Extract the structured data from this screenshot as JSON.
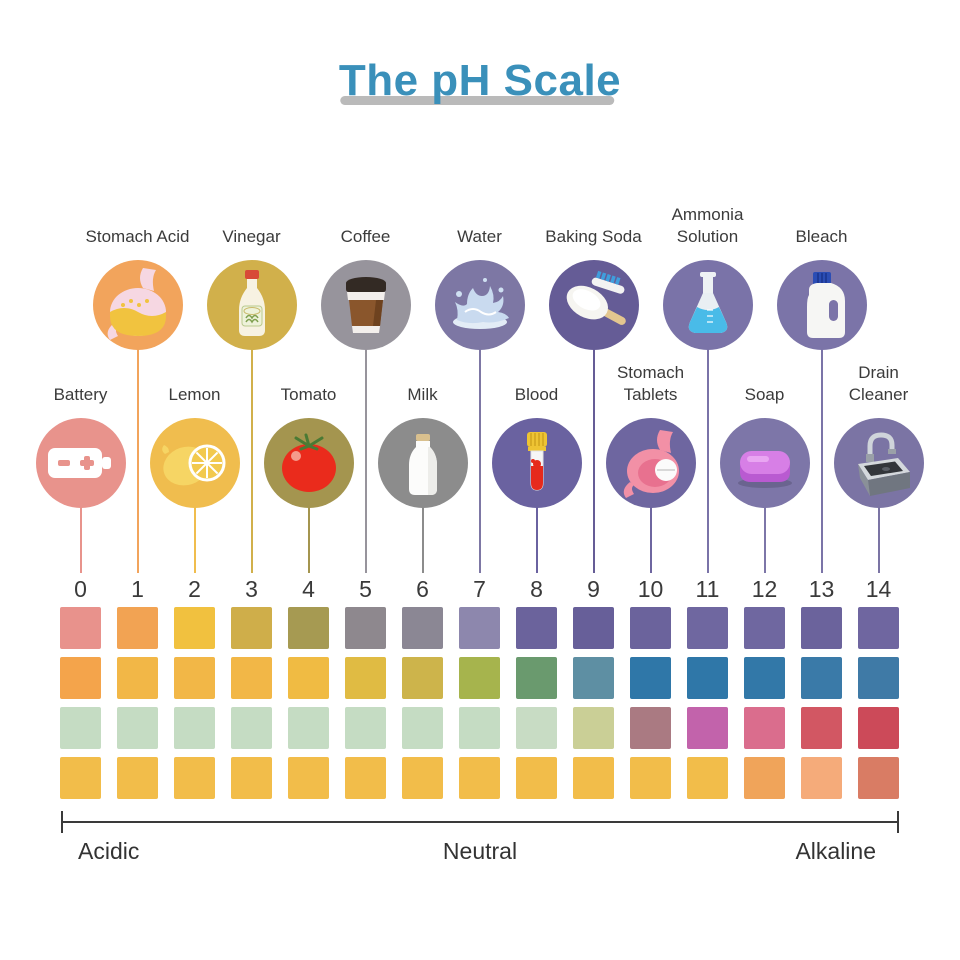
{
  "title": "The pH Scale",
  "colors": {
    "title": "#3a90ba",
    "title_underline": "#bababa",
    "label_text": "#3b3b3b",
    "bracket": "#3a3a3a"
  },
  "items": [
    {
      "ph": 0,
      "label": "Battery",
      "label_lines": [
        "Battery"
      ],
      "row": "bottom",
      "circle_color": "#e8938c",
      "icon": "battery"
    },
    {
      "ph": 1,
      "label": "Stomach Acid",
      "label_lines": [
        "Stomach Acid"
      ],
      "row": "top",
      "circle_color": "#f2a45c",
      "icon": "stomach-acid"
    },
    {
      "ph": 2,
      "label": "Lemon",
      "label_lines": [
        "Lemon"
      ],
      "row": "bottom",
      "circle_color": "#f0bd4e",
      "icon": "lemon"
    },
    {
      "ph": 3,
      "label": "Vinegar",
      "label_lines": [
        "Vinegar"
      ],
      "row": "top",
      "circle_color": "#d1b04b",
      "icon": "vinegar"
    },
    {
      "ph": 4,
      "label": "Tomato",
      "label_lines": [
        "Tomato"
      ],
      "row": "bottom",
      "circle_color": "#a4954f",
      "icon": "tomato"
    },
    {
      "ph": 5,
      "label": "Coffee",
      "label_lines": [
        "Coffee"
      ],
      "row": "top",
      "circle_color": "#97949c",
      "icon": "coffee"
    },
    {
      "ph": 6,
      "label": "Milk",
      "label_lines": [
        "Milk"
      ],
      "row": "bottom",
      "circle_color": "#8c8c8c",
      "icon": "milk"
    },
    {
      "ph": 7,
      "label": "Water",
      "label_lines": [
        "Water"
      ],
      "row": "top",
      "circle_color": "#7d77a4",
      "icon": "water"
    },
    {
      "ph": 8,
      "label": "Blood",
      "label_lines": [
        "Blood"
      ],
      "row": "bottom",
      "circle_color": "#6a62a0",
      "icon": "blood"
    },
    {
      "ph": 9,
      "label": "Baking Soda",
      "label_lines": [
        "Baking Soda"
      ],
      "row": "top",
      "circle_color": "#655c96",
      "icon": "baking-soda"
    },
    {
      "ph": 10,
      "label": "Stomach Tablets",
      "label_lines": [
        "Stomach",
        "Tablets"
      ],
      "row": "bottom",
      "circle_color": "#6e66a0",
      "icon": "stomach-tablets"
    },
    {
      "ph": 11,
      "label": "Ammonia Solution",
      "label_lines": [
        "Ammonia",
        "Solution"
      ],
      "row": "top",
      "circle_color": "#7a73a8",
      "icon": "ammonia-flask"
    },
    {
      "ph": 12,
      "label": "Soap",
      "label_lines": [
        "Soap"
      ],
      "row": "bottom",
      "circle_color": "#7d76a8",
      "icon": "soap"
    },
    {
      "ph": 13,
      "label": "Bleach",
      "label_lines": [
        "Bleach"
      ],
      "row": "top",
      "circle_color": "#7b74a8",
      "icon": "bleach"
    },
    {
      "ph": 14,
      "label": "Drain Cleaner",
      "label_lines": [
        "Drain",
        "Cleaner"
      ],
      "row": "bottom",
      "circle_color": "#7b74a4",
      "icon": "drain-cleaner"
    }
  ],
  "scale_numbers": [
    "0",
    "1",
    "2",
    "3",
    "4",
    "5",
    "6",
    "7",
    "8",
    "9",
    "10",
    "11",
    "12",
    "13",
    "14"
  ],
  "swatch_rows": [
    {
      "name": "strip-row-1",
      "colors": [
        "#e8928c",
        "#f2a353",
        "#f1c13f",
        "#cfae4a",
        "#a69a52",
        "#8e888e",
        "#8b8794",
        "#8d87ad",
        "#6b639c",
        "#675f99",
        "#6b639c",
        "#6f67a0",
        "#6f67a0",
        "#6b639c",
        "#6f66a0"
      ]
    },
    {
      "name": "strip-row-2",
      "colors": [
        "#f4a44b",
        "#f2b747",
        "#f2b747",
        "#f2b747",
        "#f0bb43",
        "#e0bb43",
        "#cdb44b",
        "#a6b44d",
        "#6a9a6e",
        "#5e8fa3",
        "#2f77a8",
        "#2f77a8",
        "#3278a8",
        "#3a7aa8",
        "#3f7aa6"
      ]
    },
    {
      "name": "strip-row-3",
      "colors": [
        "#c5dcc3",
        "#c5dcc3",
        "#c5dcc3",
        "#c5dcc3",
        "#c5dcc3",
        "#c5dcc3",
        "#c5dcc3",
        "#c5dcc3",
        "#c8dcc4",
        "#cacf96",
        "#aa7a82",
        "#c263ab",
        "#da6d8d",
        "#d25763",
        "#cc4a59"
      ]
    },
    {
      "name": "strip-row-4",
      "colors": [
        "#f2bd4a",
        "#f2bd4a",
        "#f2bd4a",
        "#f2bd4a",
        "#f2bd4a",
        "#f2bd4a",
        "#f2bd4a",
        "#f2bd4a",
        "#f2bd4a",
        "#f2bd4a",
        "#f2bd4a",
        "#f2bd4a",
        "#f0a45a",
        "#f5ab7a",
        "#d97c64"
      ]
    }
  ],
  "axis": {
    "left": "Acidic",
    "center": "Neutral",
    "right": "Alkaline"
  }
}
